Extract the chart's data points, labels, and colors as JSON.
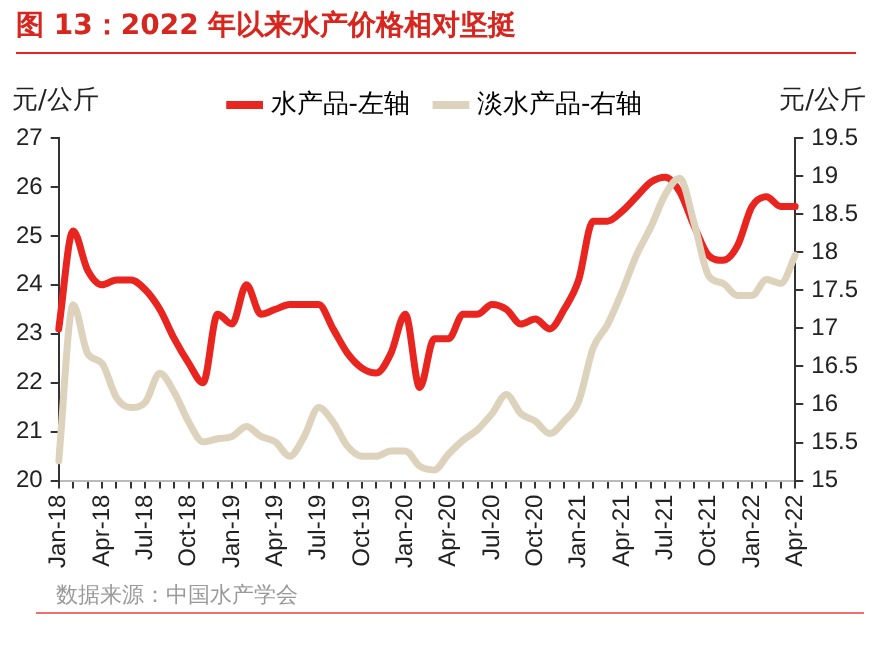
{
  "chart_data": {
    "type": "line",
    "title": "图 13：2022 年以来水产价格相对坚挺",
    "ylabel": "元/公斤",
    "y2label": "元/公斤",
    "categories": [
      "Jan-18",
      null,
      null,
      "Apr-18",
      null,
      null,
      "Jul-18",
      null,
      null,
      "Oct-18",
      null,
      null,
      "Jan-19",
      null,
      null,
      "Apr-19",
      null,
      null,
      "Jul-19",
      null,
      null,
      "Oct-19",
      null,
      null,
      "Jan-20",
      null,
      null,
      "Apr-20",
      null,
      null,
      "Jul-20",
      null,
      null,
      "Oct-20",
      null,
      null,
      "Jan-21",
      null,
      null,
      "Apr-21",
      null,
      null,
      "Jul-21",
      null,
      null,
      "Oct-21",
      null,
      null,
      "Jan-22",
      null,
      null,
      "Apr-22"
    ],
    "series": [
      {
        "name": "水产品-左轴",
        "color": "#e8251f",
        "axis": "y",
        "values": [
          23.1,
          25.1,
          24.3,
          24.0,
          24.1,
          24.1,
          23.9,
          23.5,
          22.9,
          22.4,
          22.0,
          23.4,
          23.2,
          24.0,
          23.4,
          23.5,
          23.6,
          23.6,
          23.6,
          23.1,
          22.6,
          22.3,
          22.2,
          22.6,
          23.4,
          21.9,
          22.9,
          22.9,
          23.4,
          23.4,
          23.6,
          23.5,
          23.2,
          23.3,
          23.1,
          23.5,
          24.1,
          25.3,
          25.3,
          25.5,
          25.8,
          26.1,
          26.2,
          25.9,
          25.2,
          24.6,
          24.5,
          24.8,
          25.6,
          25.8,
          25.6,
          25.6
        ]
      },
      {
        "name": "淡水产品-右轴",
        "color": "#ddd3bd",
        "axis": "y2",
        "values": [
          15.26,
          17.31,
          16.67,
          16.54,
          16.09,
          15.96,
          16.03,
          16.41,
          16.16,
          15.77,
          15.51,
          15.55,
          15.58,
          15.71,
          15.58,
          15.51,
          15.32,
          15.58,
          15.96,
          15.77,
          15.45,
          15.32,
          15.32,
          15.39,
          15.39,
          15.19,
          15.14,
          15.35,
          15.53,
          15.67,
          15.88,
          16.13,
          15.88,
          15.78,
          15.62,
          15.78,
          16.04,
          16.74,
          17.05,
          17.48,
          17.96,
          18.33,
          18.76,
          18.97,
          18.38,
          17.69,
          17.59,
          17.43,
          17.43,
          17.64,
          17.59,
          17.96
        ]
      }
    ],
    "ylim": [
      20,
      27
    ],
    "yticks": [
      20,
      21,
      22,
      23,
      24,
      25,
      26,
      27
    ],
    "y2lim": [
      15,
      19.5
    ],
    "y2ticks": [
      15,
      15.5,
      16,
      16.5,
      17,
      17.5,
      18,
      18.5,
      19,
      19.5
    ],
    "grid": false,
    "legend": "top",
    "marker": "none",
    "line_style": "solid",
    "annotations": [
      "数据来源：中国水产学会"
    ]
  }
}
